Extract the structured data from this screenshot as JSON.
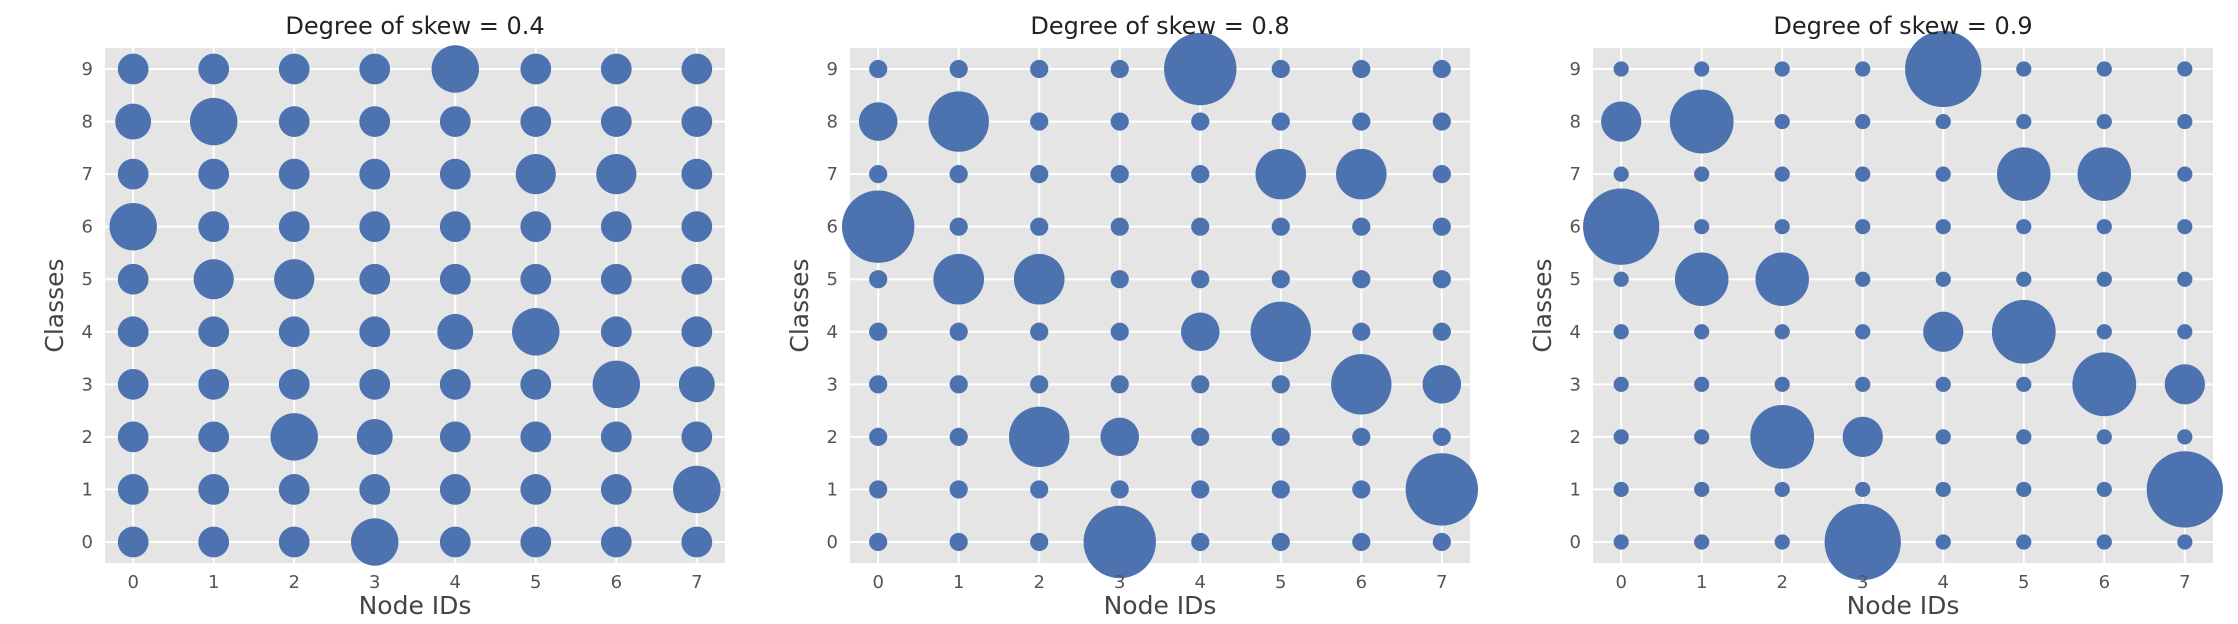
{
  "colors": {
    "background": "#ffffff",
    "plot_background": "#e5e5e5",
    "grid": "#ffffff",
    "marker": "#4c72b0"
  },
  "chart_data": [
    {
      "type": "scatter",
      "title": "Degree of skew = 0.4",
      "xlabel": "Node IDs",
      "ylabel": "Classes",
      "x_ticks": [
        "0",
        "1",
        "2",
        "3",
        "4",
        "5",
        "6",
        "7"
      ],
      "y_ticks": [
        "0",
        "1",
        "2",
        "3",
        "4",
        "5",
        "6",
        "7",
        "8",
        "9"
      ],
      "xlim": [
        -0.35,
        7.35
      ],
      "ylim": [
        -0.4,
        9.4
      ],
      "grid": true,
      "size_encoding": "relative class share per node",
      "sizes": [
        [
          0.1,
          0.1,
          0.1,
          0.3,
          0.1,
          0.1,
          0.1,
          0.1
        ],
        [
          0.1,
          0.1,
          0.1,
          0.1,
          0.1,
          0.1,
          0.1,
          0.3
        ],
        [
          0.1,
          0.1,
          0.3,
          0.15,
          0.1,
          0.1,
          0.1,
          0.1
        ],
        [
          0.1,
          0.1,
          0.1,
          0.1,
          0.1,
          0.1,
          0.3,
          0.15
        ],
        [
          0.1,
          0.1,
          0.1,
          0.1,
          0.15,
          0.3,
          0.1,
          0.1
        ],
        [
          0.1,
          0.2,
          0.2,
          0.1,
          0.1,
          0.1,
          0.1,
          0.1
        ],
        [
          0.3,
          0.1,
          0.1,
          0.1,
          0.1,
          0.1,
          0.1,
          0.1
        ],
        [
          0.1,
          0.1,
          0.1,
          0.1,
          0.1,
          0.2,
          0.2,
          0.1
        ],
        [
          0.15,
          0.3,
          0.1,
          0.1,
          0.1,
          0.1,
          0.1,
          0.1
        ],
        [
          0.1,
          0.1,
          0.1,
          0.1,
          0.3,
          0.1,
          0.1,
          0.1
        ]
      ]
    },
    {
      "type": "scatter",
      "title": "Degree of skew = 0.8",
      "xlabel": "Node IDs",
      "ylabel": "Classes",
      "x_ticks": [
        "0",
        "1",
        "2",
        "3",
        "4",
        "5",
        "6",
        "7"
      ],
      "y_ticks": [
        "0",
        "1",
        "2",
        "3",
        "4",
        "5",
        "6",
        "7",
        "8",
        "9"
      ],
      "xlim": [
        -0.35,
        7.35
      ],
      "ylim": [
        -0.4,
        9.4
      ],
      "grid": true,
      "size_encoding": "relative class share per node",
      "sizes": [
        [
          0.02,
          0.02,
          0.02,
          0.8,
          0.02,
          0.02,
          0.02,
          0.02
        ],
        [
          0.02,
          0.02,
          0.02,
          0.02,
          0.02,
          0.02,
          0.02,
          0.8
        ],
        [
          0.02,
          0.02,
          0.53,
          0.18,
          0.02,
          0.02,
          0.02,
          0.02
        ],
        [
          0.02,
          0.02,
          0.02,
          0.02,
          0.02,
          0.02,
          0.53,
          0.18
        ],
        [
          0.02,
          0.02,
          0.02,
          0.02,
          0.18,
          0.53,
          0.02,
          0.02
        ],
        [
          0.02,
          0.35,
          0.35,
          0.02,
          0.02,
          0.02,
          0.02,
          0.02
        ],
        [
          0.8,
          0.02,
          0.02,
          0.02,
          0.02,
          0.02,
          0.02,
          0.02
        ],
        [
          0.02,
          0.02,
          0.02,
          0.02,
          0.02,
          0.35,
          0.35,
          0.02
        ],
        [
          0.18,
          0.53,
          0.02,
          0.02,
          0.02,
          0.02,
          0.02,
          0.02
        ],
        [
          0.02,
          0.02,
          0.02,
          0.02,
          0.8,
          0.02,
          0.02,
          0.02
        ]
      ]
    },
    {
      "type": "scatter",
      "title": "Degree of skew = 0.9",
      "xlabel": "Node IDs",
      "ylabel": "Classes",
      "x_ticks": [
        "0",
        "1",
        "2",
        "3",
        "4",
        "5",
        "6",
        "7"
      ],
      "y_ticks": [
        "0",
        "1",
        "2",
        "3",
        "4",
        "5",
        "6",
        "7",
        "8",
        "9"
      ],
      "xlim": [
        -0.35,
        7.35
      ],
      "ylim": [
        -0.4,
        9.4
      ],
      "grid": true,
      "size_encoding": "relative class share per node",
      "sizes": [
        [
          0.01,
          0.01,
          0.01,
          0.9,
          0.01,
          0.01,
          0.01,
          0.01
        ],
        [
          0.01,
          0.01,
          0.01,
          0.01,
          0.01,
          0.01,
          0.01,
          0.9
        ],
        [
          0.01,
          0.01,
          0.6,
          0.2,
          0.01,
          0.01,
          0.01,
          0.01
        ],
        [
          0.01,
          0.01,
          0.01,
          0.01,
          0.01,
          0.01,
          0.6,
          0.2
        ],
        [
          0.01,
          0.01,
          0.01,
          0.01,
          0.2,
          0.6,
          0.01,
          0.01
        ],
        [
          0.01,
          0.4,
          0.4,
          0.01,
          0.01,
          0.01,
          0.01,
          0.01
        ],
        [
          0.9,
          0.01,
          0.01,
          0.01,
          0.01,
          0.01,
          0.01,
          0.01
        ],
        [
          0.01,
          0.01,
          0.01,
          0.01,
          0.01,
          0.4,
          0.4,
          0.01
        ],
        [
          0.2,
          0.6,
          0.01,
          0.01,
          0.01,
          0.01,
          0.01,
          0.01
        ],
        [
          0.01,
          0.01,
          0.01,
          0.01,
          0.9,
          0.01,
          0.01,
          0.01
        ]
      ]
    }
  ]
}
